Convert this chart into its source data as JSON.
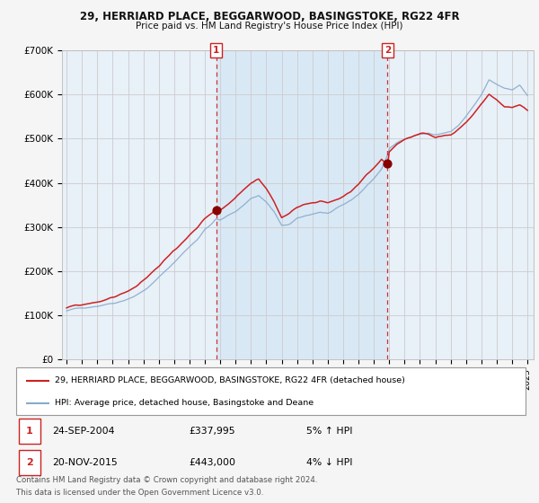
{
  "title_line1": "29, HERRIARD PLACE, BEGGARWOOD, BASINGSTOKE, RG22 4FR",
  "title_line2": "Price paid vs. HM Land Registry's House Price Index (HPI)",
  "legend_red": "29, HERRIARD PLACE, BEGGARWOOD, BASINGSTOKE, RG22 4FR (detached house)",
  "legend_blue": "HPI: Average price, detached house, Basingstoke and Deane",
  "transaction1_date": "24-SEP-2004",
  "transaction1_price": "£337,995",
  "transaction1_hpi": "5% ↑ HPI",
  "transaction1_year": 2004.73,
  "transaction1_value": 337995,
  "transaction2_date": "20-NOV-2015",
  "transaction2_price": "£443,000",
  "transaction2_hpi": "4% ↓ HPI",
  "transaction2_year": 2015.89,
  "transaction2_value": 443000,
  "footer_line1": "Contains HM Land Registry data © Crown copyright and database right 2024.",
  "footer_line2": "This data is licensed under the Open Government Licence v3.0.",
  "ylim": [
    0,
    700000
  ],
  "background_color": "#f5f5f5",
  "plot_bg_color": "#e8f0f8",
  "grid_color": "#cccccc",
  "red_line_color": "#cc2222",
  "blue_line_color": "#88aacc",
  "dashed_line_color": "#cc3333"
}
